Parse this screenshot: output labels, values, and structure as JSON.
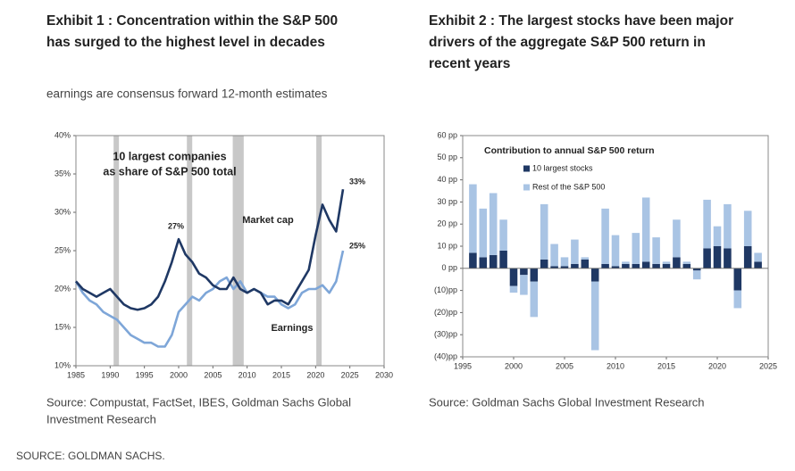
{
  "chart_data": [
    {
      "type": "line",
      "title": [
        "Exhibit 1 : Concentration within the S&P 500",
        "has surged to the highest level in decades"
      ],
      "subtitle": "earnings are consensus forward 12-month estimates",
      "annotations": [
        "10 largest companies",
        "as share of S&P 500 total",
        "27%",
        "33%",
        "25%"
      ],
      "source": [
        "Source: Compustat, FactSet, IBES, Goldman Sachs Global",
        "Investment Research"
      ],
      "x": [
        1985,
        1986,
        1987,
        1988,
        1989,
        1990,
        1991,
        1992,
        1993,
        1994,
        1995,
        1996,
        1997,
        1998,
        1999,
        2000,
        2001,
        2002,
        2003,
        2004,
        2005,
        2006,
        2007,
        2008,
        2009,
        2010,
        2011,
        2012,
        2013,
        2014,
        2015,
        2016,
        2017,
        2018,
        2019,
        2020,
        2021,
        2022,
        2023,
        2024
      ],
      "series": [
        {
          "name": "Market cap",
          "color": "#1f3864",
          "values": [
            21,
            20,
            19.5,
            19,
            19.5,
            20,
            19,
            18,
            17.5,
            17.3,
            17.5,
            18,
            19,
            21,
            23.5,
            26.5,
            24.5,
            23.5,
            22,
            21.5,
            20.5,
            20,
            20,
            21.5,
            20,
            19.5,
            20,
            19.5,
            18,
            18.5,
            18.5,
            18,
            19.5,
            21,
            22.5,
            27,
            31,
            29,
            27.5,
            33
          ]
        },
        {
          "name": "Earnings",
          "color": "#7ea6d8",
          "values": [
            21,
            19.5,
            18.5,
            18,
            17,
            16.5,
            16,
            15,
            14,
            13.5,
            13,
            13,
            12.5,
            12.5,
            14,
            17,
            18,
            19,
            18.5,
            19.5,
            20,
            21,
            21.5,
            20,
            21,
            19.5,
            20,
            19.5,
            19,
            19,
            18,
            17.5,
            18,
            19.5,
            20,
            20,
            20.5,
            19.5,
            21,
            25
          ]
        }
      ],
      "shaded_periods": [
        [
          1990.5,
          1991.2
        ],
        [
          2001.2,
          2001.9
        ],
        [
          2007.9,
          2009.5
        ],
        [
          2020.1,
          2020.5
        ]
      ],
      "shade_color": "#c8c8c8",
      "xlim": [
        1985,
        2030
      ],
      "xticks": [
        1985,
        1990,
        1995,
        2000,
        2005,
        2010,
        2015,
        2020,
        2025,
        2030
      ],
      "ylim": [
        10,
        40
      ],
      "yticks": [
        {
          "value": 10,
          "label": "10%"
        },
        {
          "value": 15,
          "label": "15%"
        },
        {
          "value": 20,
          "label": "20%"
        },
        {
          "value": 25,
          "label": "25%"
        },
        {
          "value": 30,
          "label": "30%"
        },
        {
          "value": 35,
          "label": "35%"
        },
        {
          "value": 40,
          "label": "40%"
        }
      ]
    },
    {
      "type": "stacked_bar",
      "title": [
        "Exhibit 2 : The largest stocks have been major",
        "drivers of the aggregate S&P 500 return in",
        "recent years"
      ],
      "legend_title": "Contribution to annual S&P 500 return",
      "legend": "upper left",
      "source": [
        "Source: Goldman Sachs Global Investment Research"
      ],
      "x": [
        1996,
        1997,
        1998,
        1999,
        2000,
        2001,
        2002,
        2003,
        2004,
        2005,
        2006,
        2007,
        2008,
        2009,
        2010,
        2011,
        2012,
        2013,
        2014,
        2015,
        2016,
        2017,
        2018,
        2019,
        2020,
        2021,
        2022,
        2023,
        2024
      ],
      "series": [
        {
          "name": "10 largest stocks",
          "color": "#1f3864",
          "values": [
            7,
            5,
            6,
            8,
            -8,
            -3,
            -6,
            4,
            1,
            1,
            2,
            4,
            -6,
            2,
            1,
            2,
            2,
            3,
            2,
            2,
            5,
            2,
            -1,
            9,
            10,
            9,
            -10,
            10,
            3
          ]
        },
        {
          "name": "Rest of the S&P 500",
          "color": "#a9c4e4",
          "values": [
            31,
            22,
            28,
            14,
            -3,
            -9,
            -16,
            25,
            10,
            4,
            11,
            1,
            -31,
            25,
            14,
            1,
            14,
            29,
            12,
            1,
            17,
            1,
            -4,
            22,
            9,
            20,
            -8,
            16,
            4
          ]
        }
      ],
      "xlim": [
        1995,
        2025
      ],
      "xticks": [
        1995,
        2000,
        2005,
        2010,
        2015,
        2020,
        2025
      ],
      "ylim": [
        -40,
        60
      ],
      "yticks": [
        {
          "value": 60,
          "label": "60 pp"
        },
        {
          "value": 50,
          "label": "50 pp"
        },
        {
          "value": 40,
          "label": "40 pp"
        },
        {
          "value": 30,
          "label": "30 pp"
        },
        {
          "value": 20,
          "label": "20 pp"
        },
        {
          "value": 10,
          "label": "10 pp"
        },
        {
          "value": 0,
          "label": "0 pp"
        },
        {
          "value": -10,
          "label": "(10)pp"
        },
        {
          "value": -20,
          "label": "(20)pp"
        },
        {
          "value": -30,
          "label": "(30)pp"
        },
        {
          "value": -40,
          "label": "(40)pp"
        }
      ]
    }
  ],
  "footer": "SOURCE: GOLDMAN SACHS."
}
